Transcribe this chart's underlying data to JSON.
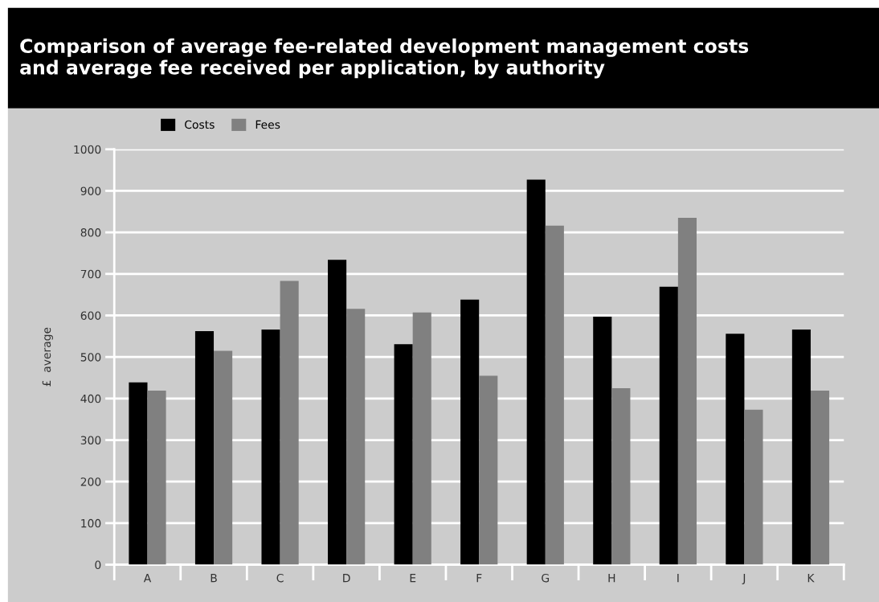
{
  "chart_data": {
    "type": "bar",
    "title": "Comparison of average fee-related development management costs\nand average fee received per application, by authority",
    "ylabel": "£  average",
    "categories": [
      "A",
      "B",
      "C",
      "D",
      "E",
      "F",
      "G",
      "H",
      "I",
      "J",
      "K"
    ],
    "series": [
      {
        "name": "Costs",
        "color": "#000000",
        "values": [
          439,
          562,
          566,
          734,
          531,
          638,
          927,
          597,
          669,
          556,
          566
        ]
      },
      {
        "name": "Fees",
        "color": "#808080",
        "values": [
          419,
          515,
          683,
          616,
          607,
          455,
          816,
          425,
          835,
          373,
          419
        ]
      }
    ],
    "ylim": [
      0,
      1000
    ],
    "yticks": [
      0,
      100,
      200,
      300,
      400,
      500,
      600,
      700,
      800,
      900,
      1000
    ],
    "grid": "y",
    "legend": "top left"
  }
}
